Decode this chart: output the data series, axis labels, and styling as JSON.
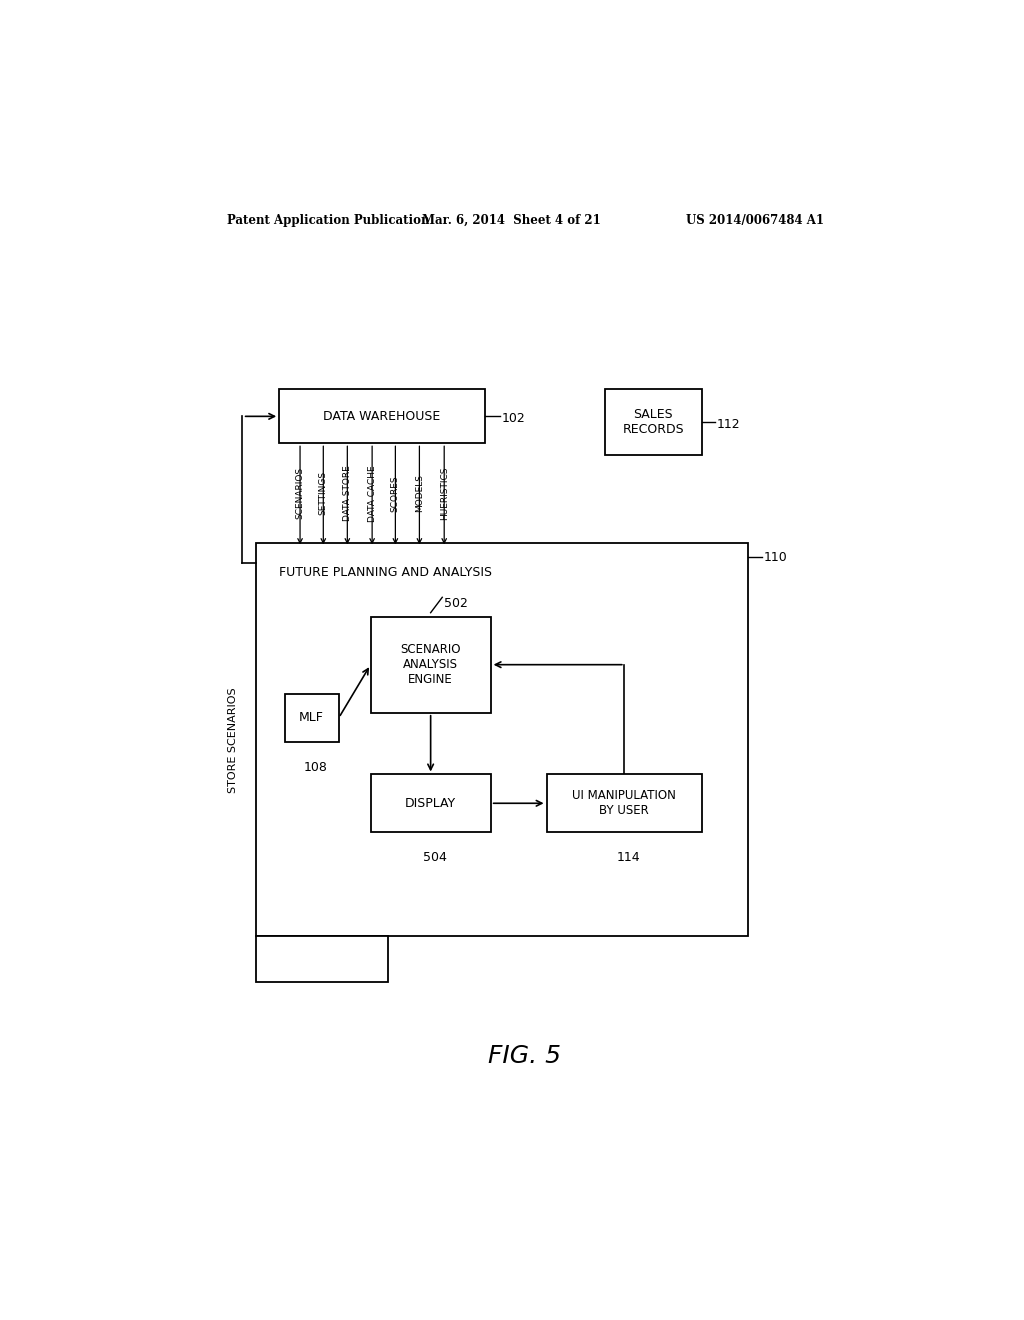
{
  "background_color": "#ffffff",
  "header_left": "Patent Application Publication",
  "header_mid": "Mar. 6, 2014  Sheet 4 of 21",
  "header_right": "US 2014/0067484 A1",
  "figure_label": "FIG. 5",
  "data_warehouse_label": "DATA WAREHOUSE",
  "data_warehouse_ref": "102",
  "sales_records_label": "SALES\nRECORDS",
  "sales_records_ref": "112",
  "outer_box_label": "FUTURE PLANNING AND ANALYSIS",
  "outer_box_ref": "110",
  "scenario_engine_label": "SCENARIO\nANALYSIS\nENGINE",
  "scenario_engine_ref": "502",
  "mlf_label": "MLF",
  "mlf_ref": "108",
  "display_label": "DISPLAY",
  "display_ref": "504",
  "ui_label": "UI MANIPULATION\nBY USER",
  "ui_ref": "114",
  "store_scenarios_label": "STORE SCENARIOS",
  "columns": [
    "SCENARIOS",
    "SETTINGS",
    "DATA STORE",
    "DATA CACHE",
    "SCORES",
    "MODELS",
    "HUERISTICS"
  ]
}
